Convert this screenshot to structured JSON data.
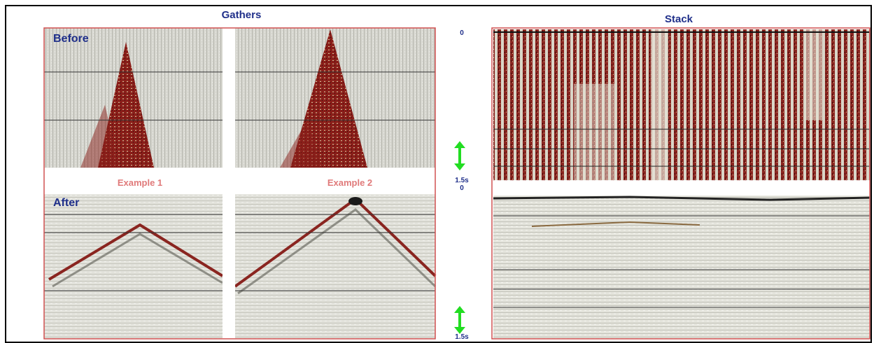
{
  "gathers": {
    "title": "Gathers",
    "before": "Before",
    "after": "After",
    "examples": [
      "Example 1",
      "Example 2"
    ]
  },
  "time_axis": {
    "upper": [
      "0",
      "1.5s"
    ],
    "lower": [
      "0",
      "1.5s"
    ]
  },
  "stack": {
    "title": "Stack"
  }
}
